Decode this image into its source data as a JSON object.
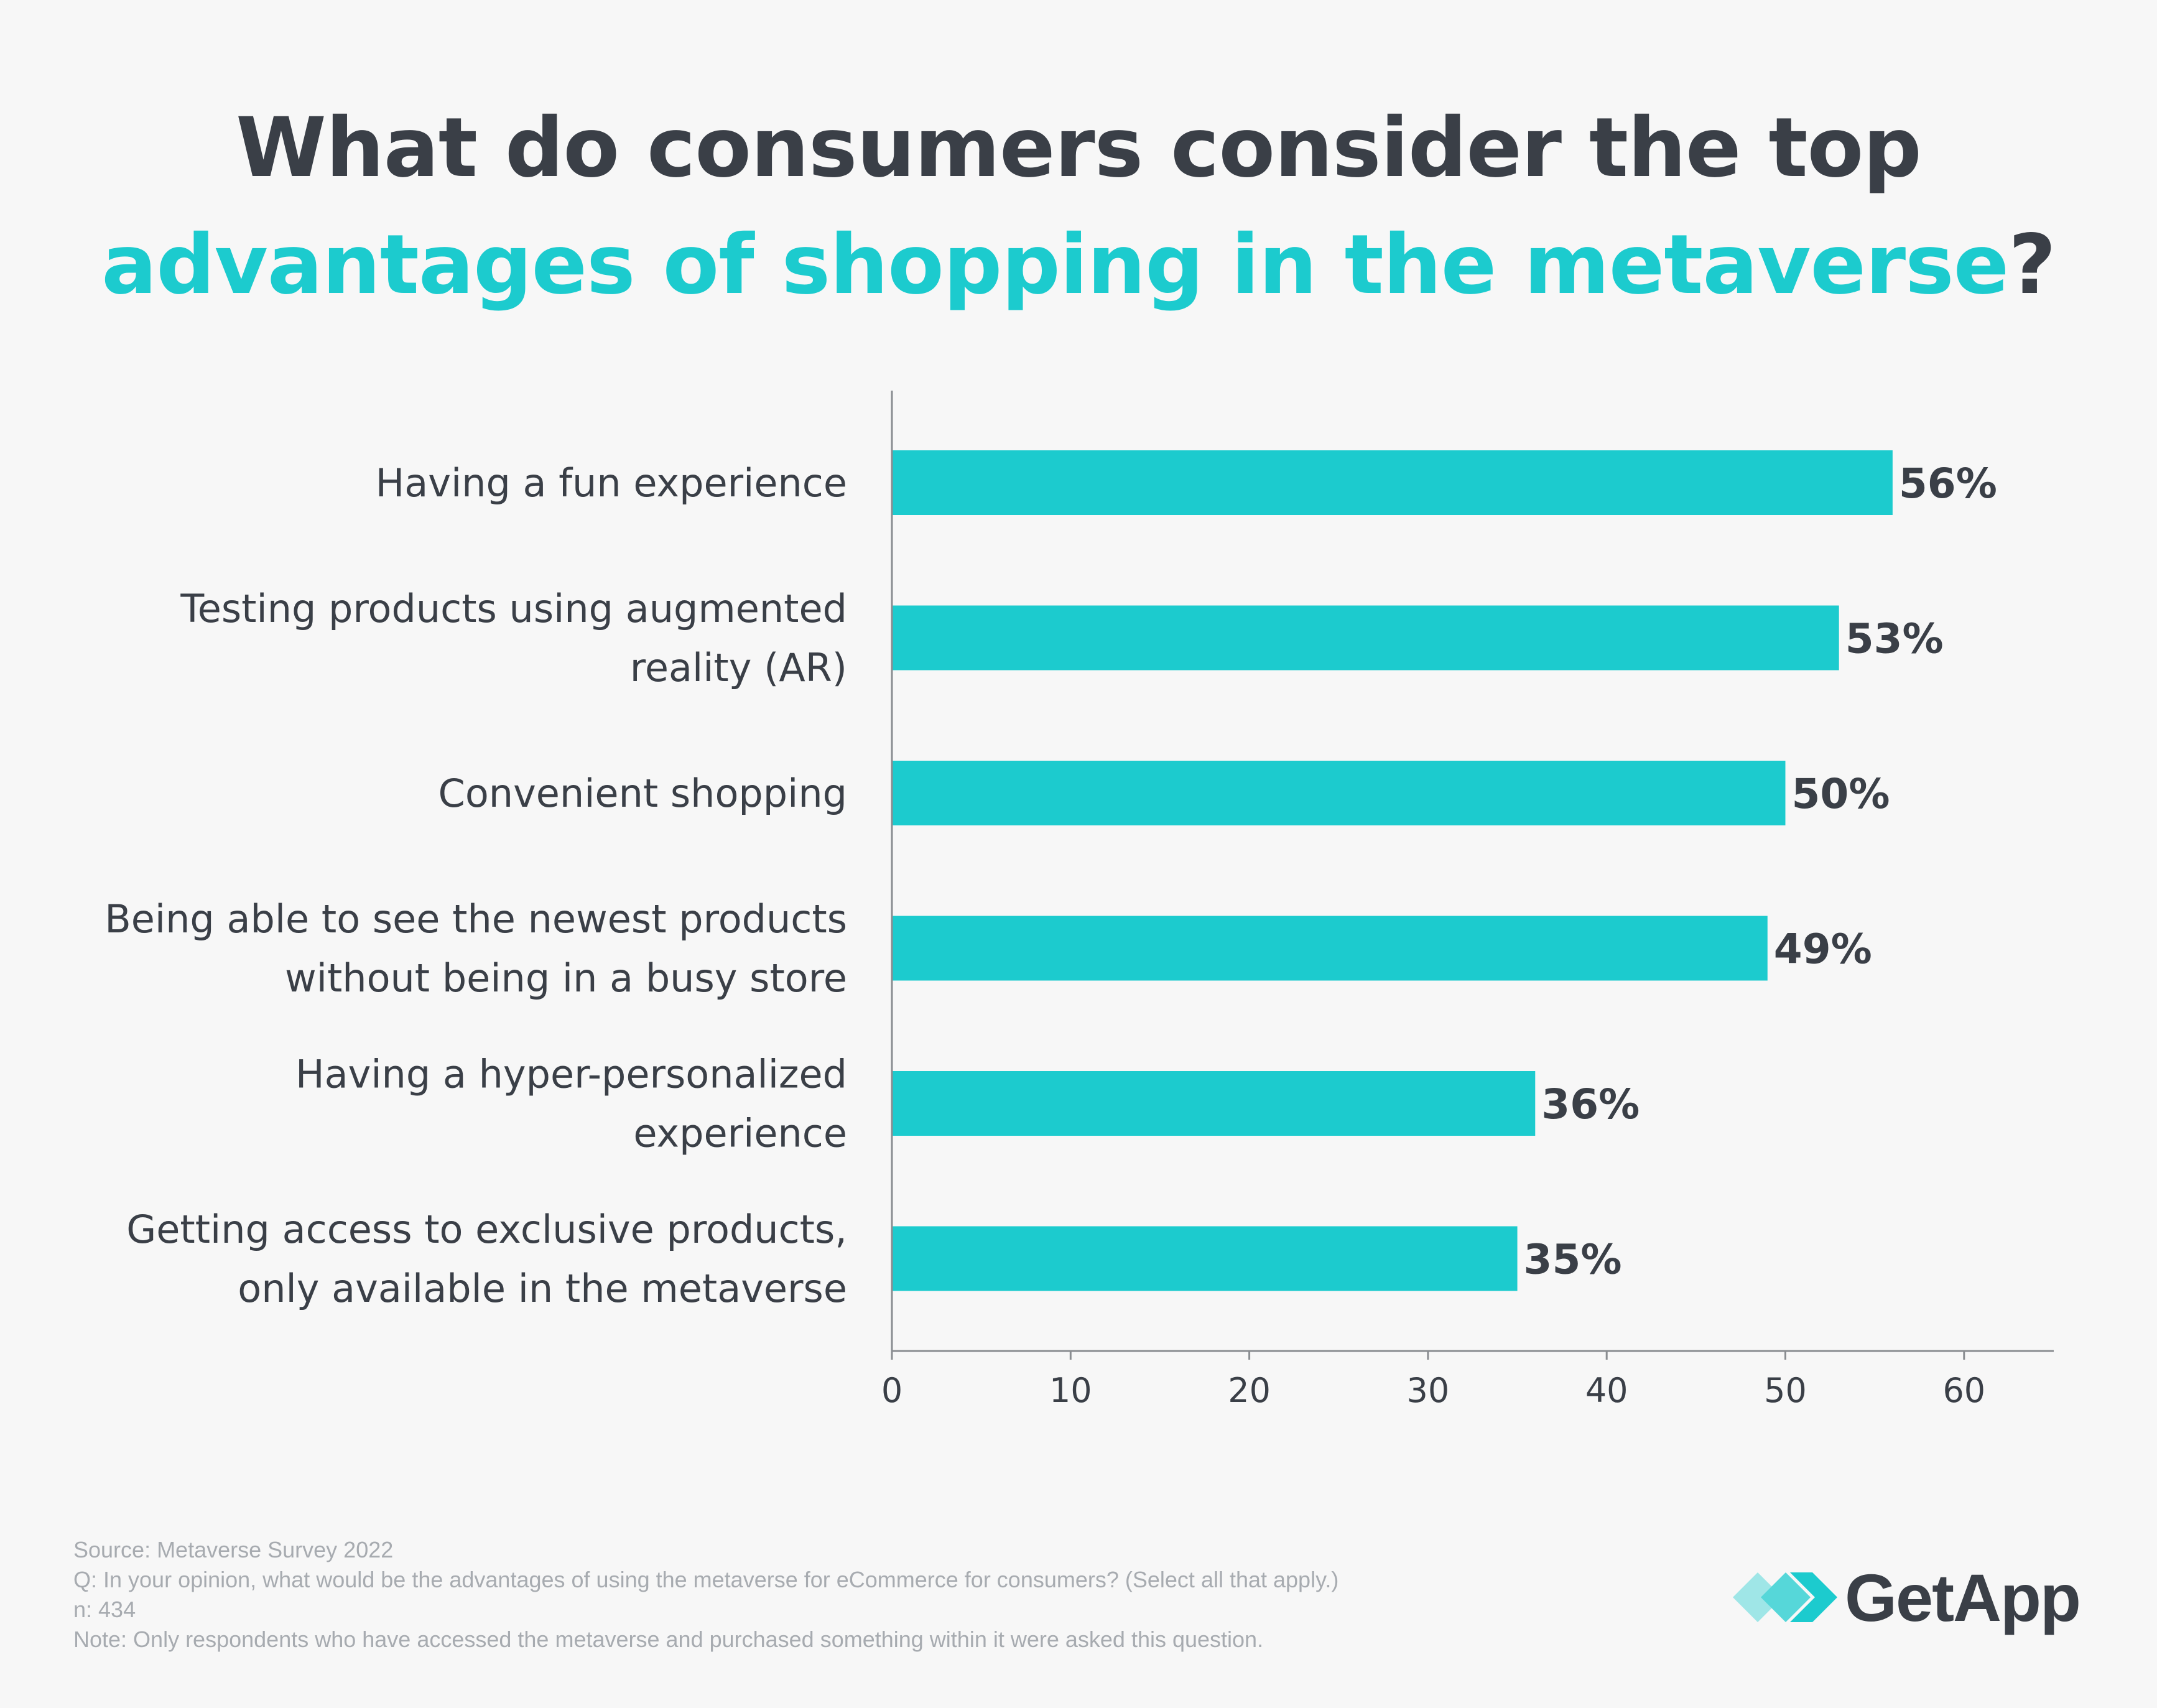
{
  "title": {
    "line1": "What do consumers consider the top",
    "line2_accent": "advantages of shopping in the metaverse",
    "line2_suffix": "?"
  },
  "colors": {
    "bar": "#1ccbce",
    "text": "#3a3f47",
    "axis": "#8a8d91",
    "footnote": "#a7abb0"
  },
  "chart_data": {
    "type": "bar",
    "orientation": "horizontal",
    "categories": [
      [
        "Having a fun experience"
      ],
      [
        "Testing products using augmented",
        "reality (AR)"
      ],
      [
        "Convenient shopping"
      ],
      [
        "Being able to see the newest products",
        "without being in a busy store"
      ],
      [
        "Having a hyper-personalized",
        "experience"
      ],
      [
        "Getting access to exclusive products,",
        "only available in the metaverse"
      ]
    ],
    "values": [
      56,
      53,
      50,
      49,
      36,
      35
    ],
    "value_labels": [
      "56%",
      "53%",
      "50%",
      "49%",
      "36%",
      "35%"
    ],
    "xlim": [
      0,
      65
    ],
    "xticks": [
      0,
      10,
      20,
      30,
      40,
      50,
      60
    ],
    "title": "What do consumers consider the top advantages of shopping in the metaverse?",
    "xlabel": "",
    "ylabel": "",
    "grid": false
  },
  "footnotes": {
    "source": "Source: Metaverse Survey 2022",
    "question": "Q: In your opinion, what would be the advantages of using the metaverse for eCommerce for consumers? (Select all that apply.)",
    "n": "n: 434",
    "note": "Note: Only respondents who have accessed the metaverse and purchased something within it were asked this question."
  },
  "logo": {
    "icon": "getapp-chevron-icon",
    "text": "GetApp"
  }
}
